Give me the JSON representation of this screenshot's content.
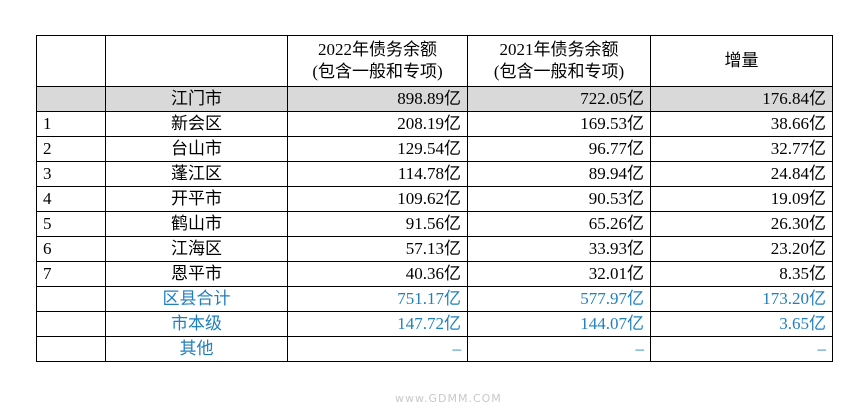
{
  "table": {
    "header": [
      [],
      [],
      [
        "2022年债务余额",
        "(包含一般和专项)"
      ],
      [
        "2021年债务余额",
        "(包含一般和专项)"
      ],
      [
        "增量"
      ]
    ],
    "rows": [
      [
        "",
        "江门市",
        "898.89亿",
        "722.05亿",
        "176.84亿"
      ],
      [
        "1",
        "新会区",
        "208.19亿",
        "169.53亿",
        "38.66亿"
      ],
      [
        "2",
        "台山市",
        "129.54亿",
        "96.77亿",
        "32.77亿"
      ],
      [
        "3",
        "蓬江区",
        "114.78亿",
        "89.94亿",
        "24.84亿"
      ],
      [
        "4",
        "开平市",
        "109.62亿",
        "90.53亿",
        "19.09亿"
      ],
      [
        "5",
        "鹤山市",
        "91.56亿",
        "65.26亿",
        "26.30亿"
      ],
      [
        "6",
        "江海区",
        "57.13亿",
        "33.93亿",
        "23.20亿"
      ],
      [
        "7",
        "恩平市",
        "40.36亿",
        "32.01亿",
        "8.35亿"
      ],
      [
        "",
        "区县合计",
        "751.17亿",
        "577.97亿",
        "173.20亿"
      ],
      [
        "",
        "市本级",
        "147.72亿",
        "144.07亿",
        "3.65亿"
      ],
      [
        "",
        "其他",
        "–",
        "–",
        "–"
      ]
    ]
  },
  "watermark": "www.GDMM.COM"
}
